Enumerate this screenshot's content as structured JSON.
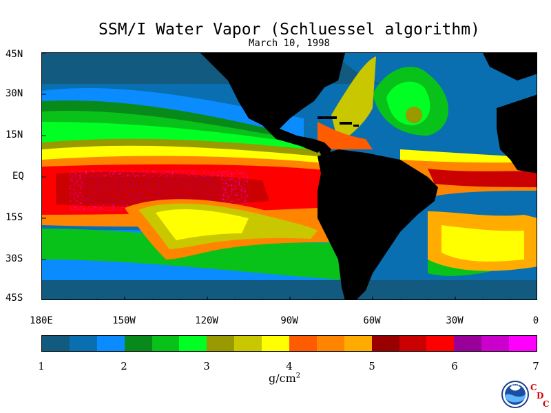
{
  "title": "SSM/I Water Vapor (Schluessel algorithm)",
  "subtitle": "March 10, 1998",
  "latitude_labels": [
    "45N",
    "30N",
    "15N",
    "EQ",
    "15S",
    "30S",
    "45S"
  ],
  "longitude_labels": [
    "180E",
    "150W",
    "120W",
    "90W",
    "60W",
    "30W",
    "0"
  ],
  "colorbar": {
    "tick_labels": [
      "1",
      "2",
      "3",
      "4",
      "5",
      "6",
      "7"
    ],
    "unit_label": "g/cm",
    "unit_superscript": "2",
    "colors": [
      "#125a80",
      "#0a6fb1",
      "#0a8cff",
      "#088a1a",
      "#08c21a",
      "#00ff22",
      "#999900",
      "#c9c800",
      "#ffff00",
      "#ff5b00",
      "#ff8400",
      "#ffab00",
      "#9a0000",
      "#cb0000",
      "#ff0000",
      "#990099",
      "#cc00cc",
      "#ff00ff"
    ]
  },
  "logo": {
    "name": "NOAA",
    "letters": [
      "C",
      "D",
      "C"
    ]
  }
}
